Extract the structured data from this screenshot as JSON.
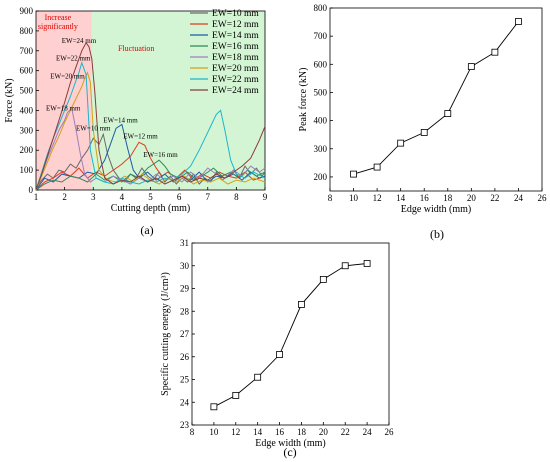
{
  "chart_data": [
    {
      "type": "line",
      "panel_label": "(a)",
      "xlabel": "Cutting depth (mm)",
      "ylabel": "Force (kN)",
      "xlim": [
        1,
        9
      ],
      "ylim": [
        0,
        900
      ],
      "x_ticks": [
        "1",
        "2",
        "3",
        "4",
        "5",
        "6",
        "7",
        "8",
        "9"
      ],
      "y_ticks": [
        "0",
        "100",
        "200",
        "300",
        "400",
        "500",
        "600",
        "700",
        "800",
        "900"
      ],
      "regions": [
        {
          "label": "Increase significantly",
          "x": [
            1.0,
            2.95
          ],
          "color": "#ffd0d0"
        },
        {
          "label": "Fluctuation",
          "x": [
            2.95,
            9.0
          ],
          "color": "#d4f5d4"
        }
      ],
      "annotations": [
        {
          "text": "EW=24 mm",
          "x": 2.5,
          "y": 740
        },
        {
          "text": "EW=22 mm",
          "x": 2.3,
          "y": 650
        },
        {
          "text": "EW=20 mm",
          "x": 2.1,
          "y": 560
        },
        {
          "text": "EW=18 mm",
          "x": 1.95,
          "y": 400
        },
        {
          "text": "EW=10 mm",
          "x": 3.0,
          "y": 300
        },
        {
          "text": "EW=14 mm",
          "x": 3.95,
          "y": 340
        },
        {
          "text": "EW=12 mm",
          "x": 4.65,
          "y": 260
        },
        {
          "text": "EW=16 mm",
          "x": 5.35,
          "y": 165
        }
      ],
      "legend_position": "top-right",
      "series": [
        {
          "name": "EW=10 mm",
          "color": "#6b6b6b",
          "x": [
            1.0,
            1.2,
            1.4,
            1.6,
            1.8,
            2.0,
            2.2,
            2.4,
            2.6,
            2.8,
            3.0,
            3.2,
            3.35,
            3.5,
            3.7,
            3.9,
            4.1,
            4.3,
            4.5,
            4.7,
            4.9,
            5.1,
            5.3,
            5.5,
            5.7,
            5.9,
            6.1,
            6.3,
            6.5,
            6.7,
            6.9,
            7.1,
            7.3,
            7.5,
            7.7,
            7.9,
            8.1,
            8.3,
            8.5,
            8.7,
            8.9,
            9.0
          ],
          "y": [
            10,
            50,
            80,
            60,
            100,
            90,
            130,
            110,
            160,
            200,
            260,
            230,
            280,
            180,
            100,
            60,
            40,
            80,
            60,
            110,
            70,
            50,
            90,
            40,
            70,
            30,
            60,
            40,
            80,
            30,
            60,
            40,
            90,
            50,
            70,
            100,
            60,
            120,
            80,
            110,
            70,
            90
          ]
        },
        {
          "name": "EW=12 mm",
          "color": "#e03a1e",
          "x": [
            1.0,
            1.3,
            1.6,
            1.9,
            2.2,
            2.5,
            2.8,
            3.1,
            3.4,
            3.7,
            4.0,
            4.3,
            4.6,
            4.8,
            5.0,
            5.2,
            5.4,
            5.6,
            5.9,
            6.2,
            6.5,
            6.8,
            7.1,
            7.4,
            7.7,
            8.0,
            8.3,
            8.6,
            9.0
          ],
          "y": [
            0,
            40,
            60,
            90,
            70,
            110,
            60,
            90,
            70,
            100,
            130,
            170,
            240,
            225,
            160,
            110,
            70,
            90,
            60,
            100,
            50,
            80,
            60,
            90,
            70,
            60,
            90,
            50,
            70
          ]
        },
        {
          "name": "EW=14 mm",
          "color": "#1f5aa6",
          "x": [
            1.0,
            1.3,
            1.6,
            1.9,
            2.2,
            2.5,
            2.8,
            3.1,
            3.4,
            3.6,
            3.8,
            4.0,
            4.2,
            4.4,
            4.6,
            4.9,
            5.2,
            5.5,
            5.8,
            6.1,
            6.4,
            6.7,
            7.0,
            7.3,
            7.6,
            7.9,
            8.2,
            8.5,
            8.8,
            9.0
          ],
          "y": [
            0,
            60,
            40,
            80,
            70,
            60,
            90,
            80,
            150,
            230,
            310,
            330,
            210,
            100,
            60,
            90,
            50,
            80,
            40,
            70,
            50,
            90,
            40,
            70,
            60,
            80,
            50,
            90,
            60,
            70
          ]
        },
        {
          "name": "EW=16 mm",
          "color": "#2e8b57",
          "x": [
            1.0,
            1.3,
            1.6,
            1.9,
            2.2,
            2.5,
            2.8,
            3.1,
            3.4,
            3.7,
            4.0,
            4.3,
            4.6,
            4.9,
            5.1,
            5.3,
            5.5,
            5.7,
            6.0,
            6.3,
            6.6,
            6.9,
            7.2,
            7.5,
            7.8,
            8.1,
            8.4,
            8.7,
            9.0
          ],
          "y": [
            0,
            30,
            50,
            40,
            70,
            60,
            40,
            80,
            50,
            70,
            40,
            80,
            60,
            110,
            130,
            150,
            120,
            80,
            60,
            90,
            50,
            80,
            110,
            70,
            90,
            60,
            100,
            70,
            90
          ]
        },
        {
          "name": "EW=18 mm",
          "color": "#9a7fc0",
          "x": [
            1.0,
            1.2,
            1.4,
            1.6,
            1.8,
            2.0,
            2.1,
            2.25,
            2.4,
            2.55,
            2.7,
            2.9,
            3.1,
            3.4,
            3.7,
            4.0,
            4.3,
            4.6,
            4.9,
            5.2,
            5.5,
            5.8,
            6.1,
            6.4,
            6.7,
            7.0,
            7.3,
            7.6,
            7.9,
            8.2,
            8.5,
            8.8,
            9.0
          ],
          "y": [
            0,
            80,
            160,
            230,
            300,
            350,
            390,
            410,
            300,
            180,
            80,
            40,
            60,
            40,
            70,
            50,
            30,
            60,
            40,
            80,
            50,
            70,
            40,
            90,
            60,
            110,
            80,
            60,
            100,
            70,
            120,
            90,
            110
          ]
        },
        {
          "name": "EW=20 mm",
          "color": "#d4a017",
          "x": [
            1.0,
            1.2,
            1.4,
            1.6,
            1.8,
            2.0,
            2.2,
            2.4,
            2.6,
            2.7,
            2.8,
            2.9,
            3.0,
            3.2,
            3.5,
            3.8,
            4.1,
            4.4,
            4.7,
            5.0,
            5.3,
            5.6,
            5.9,
            6.2,
            6.5,
            6.8,
            7.1,
            7.4,
            7.7,
            8.0,
            8.3,
            8.6,
            9.0
          ],
          "y": [
            0,
            70,
            140,
            210,
            270,
            340,
            400,
            460,
            520,
            560,
            590,
            540,
            300,
            100,
            50,
            40,
            70,
            40,
            80,
            50,
            30,
            60,
            40,
            70,
            30,
            50,
            40,
            60,
            30,
            50,
            40,
            60,
            40
          ]
        },
        {
          "name": "EW=22 mm",
          "color": "#1cb5c9",
          "x": [
            1.0,
            1.2,
            1.4,
            1.6,
            1.8,
            2.0,
            2.2,
            2.35,
            2.5,
            2.6,
            2.75,
            2.9,
            3.1,
            3.4,
            3.7,
            4.0,
            4.3,
            4.6,
            4.9,
            5.2,
            5.5,
            5.8,
            6.1,
            6.4,
            6.7,
            6.9,
            7.1,
            7.3,
            7.45,
            7.6,
            7.8,
            8.0,
            8.3,
            8.6,
            9.0
          ],
          "y": [
            0,
            90,
            180,
            260,
            330,
            400,
            470,
            530,
            590,
            640,
            580,
            200,
            60,
            40,
            30,
            60,
            40,
            30,
            50,
            40,
            60,
            50,
            80,
            120,
            200,
            260,
            320,
            380,
            400,
            300,
            150,
            80,
            60,
            90,
            60
          ]
        },
        {
          "name": "EW=24 mm",
          "color": "#8b3a3a",
          "x": [
            1.0,
            1.2,
            1.4,
            1.6,
            1.8,
            2.0,
            2.2,
            2.4,
            2.6,
            2.75,
            2.85,
            2.95,
            3.05,
            3.2,
            3.4,
            3.7,
            4.0,
            4.3,
            4.6,
            4.9,
            5.2,
            5.5,
            5.8,
            6.1,
            6.4,
            6.7,
            7.0,
            7.3,
            7.6,
            7.9,
            8.2,
            8.5,
            8.8,
            9.0
          ],
          "y": [
            0,
            80,
            170,
            260,
            350,
            440,
            540,
            620,
            700,
            740,
            720,
            660,
            500,
            200,
            60,
            30,
            50,
            40,
            70,
            40,
            60,
            30,
            50,
            70,
            40,
            60,
            50,
            80,
            60,
            90,
            120,
            160,
            250,
            320
          ]
        }
      ]
    },
    {
      "type": "line",
      "panel_label": "(b)",
      "xlabel": "Edge width (mm)",
      "ylabel": "Peak force (kN)",
      "xlim": [
        8,
        26
      ],
      "ylim": [
        150,
        800
      ],
      "x_ticks": [
        "8",
        "10",
        "12",
        "14",
        "16",
        "18",
        "20",
        "22",
        "24",
        "26"
      ],
      "y_ticks": [
        "200",
        "300",
        "400",
        "500",
        "600",
        "700",
        "800"
      ],
      "series": [
        {
          "x": [
            10,
            12,
            14,
            16,
            18,
            20,
            22,
            24
          ],
          "y": [
            210,
            235,
            320,
            358,
            425,
            592,
            643,
            752
          ]
        }
      ]
    },
    {
      "type": "line",
      "panel_label": "(c)",
      "xlabel": "Edge width (mm)",
      "ylabel": "Specific cutting energy (J/cm³)",
      "xlim": [
        8,
        26
      ],
      "ylim": [
        23,
        31
      ],
      "x_ticks": [
        "8",
        "10",
        "12",
        "14",
        "16",
        "18",
        "20",
        "22",
        "24",
        "26"
      ],
      "y_ticks": [
        "23",
        "24",
        "25",
        "26",
        "27",
        "28",
        "29",
        "30",
        "31"
      ],
      "series": [
        {
          "x": [
            10,
            12,
            14,
            16,
            18,
            20,
            22,
            24
          ],
          "y": [
            23.8,
            24.3,
            25.1,
            26.1,
            28.3,
            29.4,
            30.0,
            30.1
          ]
        }
      ]
    }
  ]
}
